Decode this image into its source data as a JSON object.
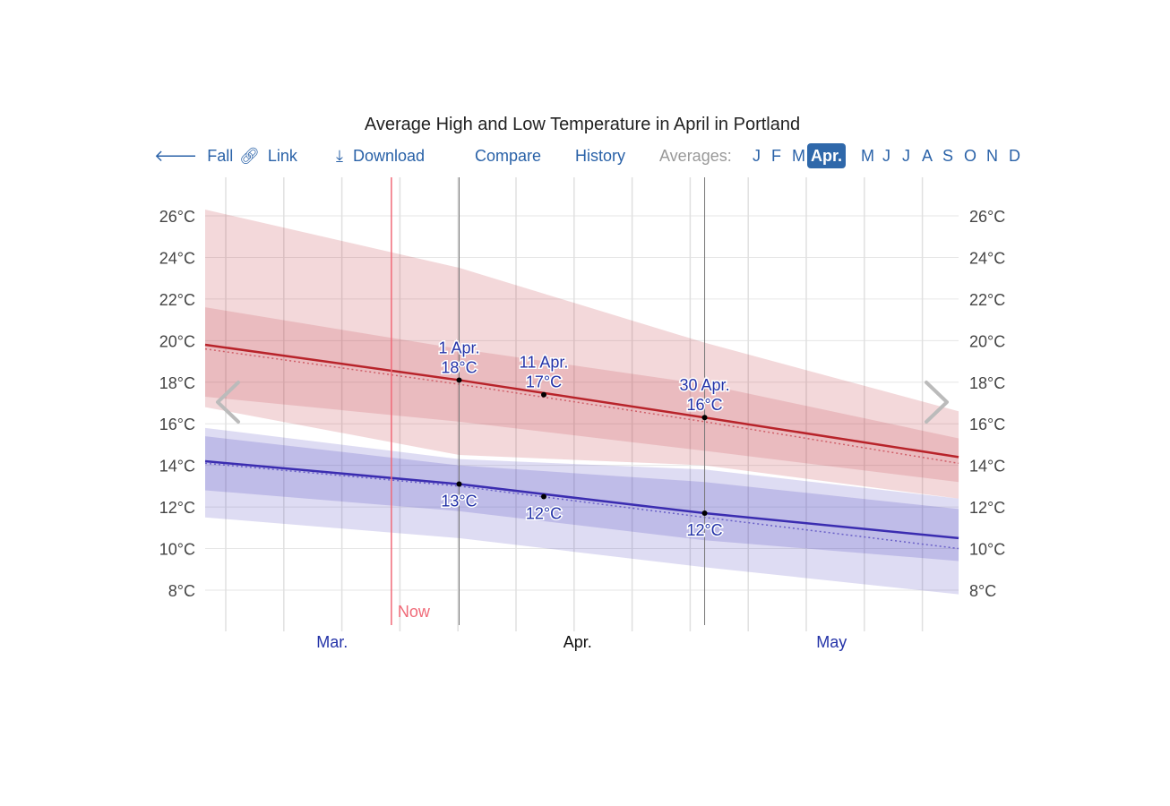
{
  "title": "Average High and Low Temperature in April in Portland",
  "toolbar": {
    "fall": "Fall",
    "link": "Link",
    "download": "Download",
    "compare": "Compare",
    "history": "History",
    "averages_label": "Averages:",
    "months": [
      "J",
      "F",
      "M",
      "Apr.",
      "M",
      "J",
      "J",
      "A",
      "S",
      "O",
      "N",
      "D"
    ],
    "selected_month_index": 3,
    "icons": {
      "fall": "arrow-left-icon",
      "link": "link-icon",
      "download": "download-icon"
    }
  },
  "nav": {
    "prev": "chevron-left-icon",
    "next": "chevron-right-icon"
  },
  "chart_data": {
    "type": "area",
    "title": "Average High and Low Temperature in April in Portland",
    "x_range": [
      "Mar 2",
      "May 30"
    ],
    "y_range": [
      7,
      27
    ],
    "y_ticks": [
      "8°C",
      "10°C",
      "12°C",
      "14°C",
      "16°C",
      "18°C",
      "20°C",
      "22°C",
      "24°C",
      "26°C"
    ],
    "x_labels": [
      {
        "text": "Mar.",
        "date": "Mar 17",
        "current": false
      },
      {
        "text": "Apr.",
        "date": "Apr 15",
        "current": true
      },
      {
        "text": "May",
        "date": "May 15",
        "current": false
      }
    ],
    "grid": true,
    "now": {
      "label": "Now",
      "date": "Mar 24"
    },
    "x": [
      "Mar 2",
      "Apr 1",
      "Apr 30",
      "May 30"
    ],
    "high": {
      "avg": [
        19.8,
        18.1,
        16.3,
        14.4
      ],
      "avg_dotted": [
        19.6,
        17.9,
        16.1,
        14.1
      ],
      "p10": [
        16.8,
        14.5,
        14.0,
        12.4
      ],
      "p25": [
        17.3,
        16.1,
        14.7,
        13.2
      ],
      "p75": [
        21.6,
        19.6,
        17.9,
        15.3
      ],
      "p90": [
        26.3,
        23.5,
        19.9,
        16.6
      ],
      "color": "#b8232a"
    },
    "low": {
      "avg": [
        14.2,
        13.1,
        11.7,
        10.5
      ],
      "avg_dotted": [
        14.1,
        13.0,
        11.5,
        10.0
      ],
      "p10": [
        11.5,
        10.5,
        9.1,
        7.8
      ],
      "p25": [
        12.8,
        11.8,
        10.4,
        9.4
      ],
      "p75": [
        15.4,
        14.0,
        13.2,
        11.9
      ],
      "p90": [
        15.8,
        14.3,
        13.8,
        12.4
      ],
      "color": "#3a2cb0"
    },
    "annotations": [
      {
        "date": "Apr 1",
        "date_label": "1 Apr.",
        "high": 18.1,
        "high_label": "18°C",
        "low": 13.1,
        "low_label": "13°C",
        "marker_line": true
      },
      {
        "date": "Apr 11",
        "date_label": "11 Apr.",
        "high": 17.4,
        "high_label": "17°C",
        "low": 12.5,
        "low_label": "12°C",
        "marker_line": false
      },
      {
        "date": "Apr 30",
        "date_label": "30 Apr.",
        "high": 16.3,
        "high_label": "16°C",
        "low": 11.7,
        "low_label": "12°C",
        "marker_line": true
      }
    ]
  }
}
